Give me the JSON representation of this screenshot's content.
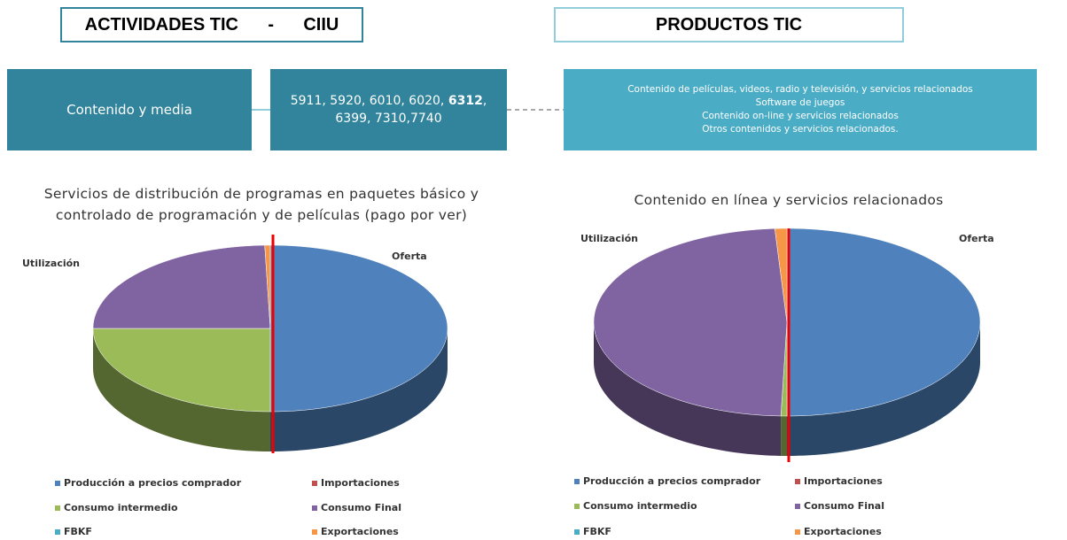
{
  "header": {
    "left_title": "ACTIVIDADES TIC      -      CIIU",
    "right_title": "PRODUCTOS TIC",
    "activity": "Contenido y media",
    "codes_before": "5911, 5920, 6010, 6020, ",
    "codes_bold": "6312",
    "codes_after": ", 6399, 7310,7740",
    "products": [
      "Contenido de películas, videos, radio y televisión, y servicios relacionados",
      "Software de juegos",
      "Contenido on-line y servicios relacionados",
      "Otros contenidos y servicios relacionados."
    ]
  },
  "chart_data": [
    {
      "type": "pie",
      "title": "Servicios de distribución de programas en paquetes básico y controlado de programación y de películas (pago por ver)",
      "annotations": [
        "Oferta",
        "Utilización"
      ],
      "categories": [
        "Producción a precios comprador",
        "Importaciones",
        "Consumo intermedio",
        "Consumo Final",
        "FBKF",
        "Exportaciones"
      ],
      "values": [
        50,
        0,
        25,
        24.5,
        0,
        0.5
      ],
      "colors": [
        "#4f81bd",
        "#c0504d",
        "#9bbb59",
        "#8064a2",
        "#4bacc6",
        "#f79646"
      ]
    },
    {
      "type": "pie",
      "title": "Contenido en línea y servicios relacionados",
      "annotations": [
        "Oferta",
        "Utilización"
      ],
      "categories": [
        "Producción a precios comprador",
        "Importaciones",
        "Consumo intermedio",
        "Consumo Final",
        "FBKF",
        "Exportaciones"
      ],
      "values": [
        50,
        0,
        0.5,
        48.5,
        0,
        1
      ],
      "colors": [
        "#4f81bd",
        "#c0504d",
        "#9bbb59",
        "#8064a2",
        "#4bacc6",
        "#f79646"
      ]
    }
  ]
}
